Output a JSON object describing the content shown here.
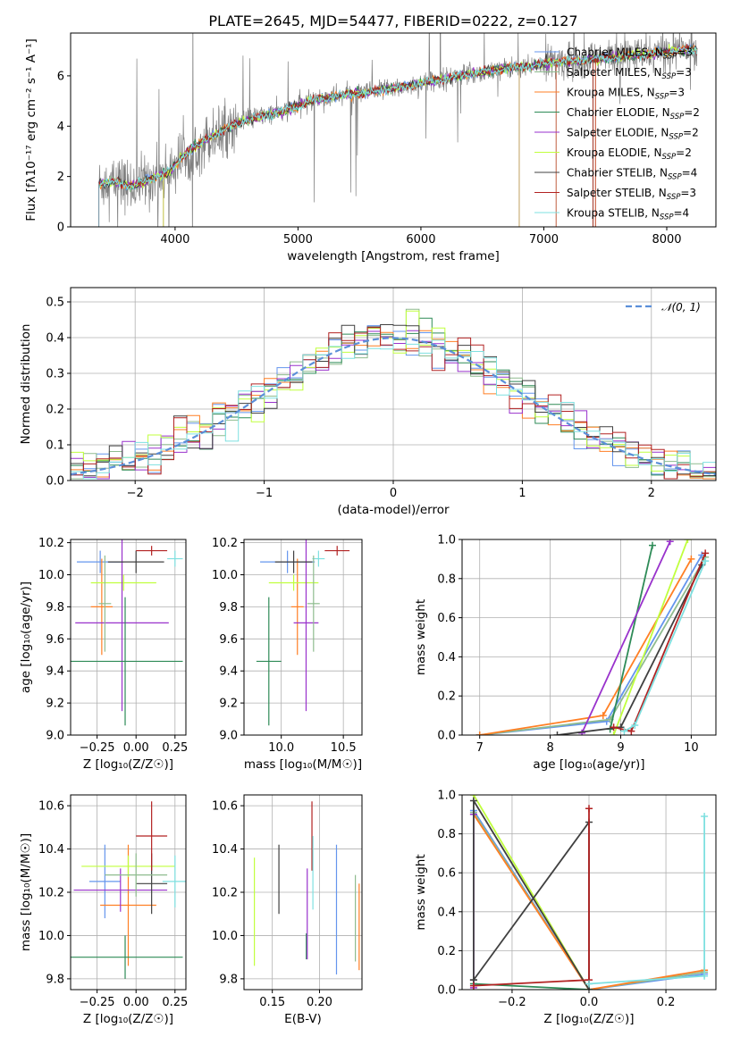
{
  "figure": {
    "title": "PLATE=2645, MJD=54477, FIBERID=0222, z=0.127"
  },
  "colors": {
    "Chabrier MILES": "#6495ed",
    "Salpeter MILES": "#8fbc8f",
    "Kroupa MILES": "#ff7f24",
    "Chabrier ELODIE": "#2e8b57",
    "Salpeter ELODIE": "#9932cc",
    "Kroupa ELODIE": "#c0ff3e",
    "Chabrier STELIB": "#404040",
    "Salpeter STELIB": "#b22222",
    "Kroupa STELIB": "#7ee0e0",
    "data": "#808080",
    "normal_curve": "#5b8fd9",
    "grid": "#b0b0b0"
  },
  "chart_data": [
    {
      "id": "spectrum",
      "type": "line",
      "xlabel": "wavelength [Angstrom, rest frame]",
      "ylabel": "Flux [fλ10⁻¹⁷ erg cm⁻² s⁻¹ A⁻¹]",
      "xlim": [
        3150,
        8400
      ],
      "ylim": [
        0,
        7.7
      ],
      "xticks": [
        4000,
        5000,
        6000,
        7000,
        8000
      ],
      "yticks": [
        0,
        2,
        4,
        6
      ],
      "grid": false,
      "legend_position": "right",
      "legend": [
        "Chabrier MILES, N_SSP=3",
        "Salpeter MILES, N_SSP=3",
        "Kroupa MILES, N_SSP=3",
        "Chabrier ELODIE, N_SSP=2",
        "Salpeter ELODIE, N_SSP=2",
        "Kroupa ELODIE, N_SSP=2",
        "Chabrier STELIB, N_SSP=4",
        "Salpeter STELIB, N_SSP=3",
        "Kroupa STELIB, N_SSP=4"
      ],
      "continuum": {
        "x": [
          3380,
          3500,
          3650,
          3800,
          3950,
          4100,
          4300,
          4500,
          4700,
          4900,
          5100,
          5300,
          5500,
          5700,
          5900,
          6100,
          6300,
          6500,
          6700,
          6900,
          7100,
          7300,
          7500,
          7700,
          7900,
          8100,
          8200
        ],
        "y": [
          1.7,
          1.8,
          1.6,
          1.9,
          2.2,
          3.0,
          3.6,
          4.1,
          4.4,
          4.6,
          5.0,
          5.2,
          5.3,
          5.45,
          5.6,
          5.8,
          6.0,
          6.15,
          6.3,
          6.4,
          6.55,
          6.6,
          6.7,
          6.8,
          6.9,
          7.0,
          7.05
        ]
      }
    },
    {
      "id": "residuals",
      "type": "line",
      "xlabel": "(data-model)/error",
      "ylabel": "Normed distribution",
      "xlim": [
        -2.5,
        2.5
      ],
      "ylim": [
        0,
        0.54
      ],
      "xticks": [
        -2,
        -1,
        0,
        1,
        2
      ],
      "yticks": [
        0.0,
        0.1,
        0.2,
        0.3,
        0.4,
        0.5
      ],
      "grid": true,
      "legend": [
        "𝒩(0, 1)"
      ],
      "legend_position": "top-right"
    },
    {
      "id": "age_vs_Z",
      "type": "scatter",
      "xlabel": "Z [log₁₀(Z/Z☉)]",
      "ylabel": "age  [log₁₀(age/yr)]",
      "xlim": [
        -0.42,
        0.32
      ],
      "ylim": [
        9.0,
        10.22
      ],
      "xticks": [
        -0.25,
        0.0,
        0.25
      ],
      "yticks": [
        9.0,
        9.2,
        9.4,
        9.6,
        9.8,
        10.0,
        10.2
      ],
      "points": [
        {
          "series": "Chabrier MILES",
          "x": -0.23,
          "xerr": 0.15,
          "y": 10.08,
          "yerr": 0.07
        },
        {
          "series": "Kroupa MILES",
          "x": -0.22,
          "xerr": 0.07,
          "y": 9.8,
          "yerr": 0.3
        },
        {
          "series": "Kroupa ELODIE",
          "x": -0.08,
          "xerr": 0.21,
          "y": 9.95,
          "yerr": 0.05
        },
        {
          "series": "Salpeter ELODIE",
          "x": -0.09,
          "xerr": 0.3,
          "y": 9.7,
          "yerr": 0.55
        },
        {
          "series": "Chabrier ELODIE",
          "x": -0.07,
          "xerr": 0.37,
          "y": 9.46,
          "yerr": 0.4
        },
        {
          "series": "Chabrier STELIB",
          "x": 0.0,
          "xerr": 0.18,
          "y": 10.08,
          "yerr": 0.07
        },
        {
          "series": "Salpeter STELIB",
          "x": 0.1,
          "xerr": 0.1,
          "y": 10.15,
          "yerr": 0.03
        },
        {
          "series": "Kroupa STELIB",
          "x": 0.25,
          "xerr": 0.05,
          "y": 10.1,
          "yerr": 0.05
        },
        {
          "series": "Salpeter MILES",
          "x": -0.2,
          "xerr": 0.04,
          "y": 9.82,
          "yerr": 0.3
        }
      ]
    },
    {
      "id": "age_vs_mass",
      "type": "scatter",
      "xlabel": "mass [log₁₀(M/M☉)]",
      "ylabel": "",
      "xlim": [
        9.7,
        10.65
      ],
      "ylim": [
        9.0,
        10.22
      ],
      "xticks": [
        10.0,
        10.5
      ],
      "yticks": [
        9.0,
        9.2,
        9.4,
        9.6,
        9.8,
        10.0,
        10.2
      ],
      "points": [
        {
          "series": "Chabrier MILES",
          "x": 10.05,
          "xerr": 0.22,
          "y": 10.08,
          "yerr": 0.07
        },
        {
          "series": "Kroupa MILES",
          "x": 10.13,
          "xerr": 0.05,
          "y": 9.8,
          "yerr": 0.3
        },
        {
          "series": "Kroupa ELODIE",
          "x": 10.1,
          "xerr": 0.2,
          "y": 9.95,
          "yerr": 0.05
        },
        {
          "series": "Salpeter ELODIE",
          "x": 10.2,
          "xerr": 0.1,
          "y": 9.7,
          "yerr": 0.55
        },
        {
          "series": "Chabrier ELODIE",
          "x": 9.9,
          "xerr": 0.1,
          "y": 9.46,
          "yerr": 0.4
        },
        {
          "series": "Chabrier STELIB",
          "x": 10.1,
          "xerr": 0.15,
          "y": 10.08,
          "yerr": 0.07
        },
        {
          "series": "Salpeter STELIB",
          "x": 10.45,
          "xerr": 0.1,
          "y": 10.15,
          "yerr": 0.03
        },
        {
          "series": "Kroupa STELIB",
          "x": 10.3,
          "xerr": 0.05,
          "y": 10.1,
          "yerr": 0.05
        },
        {
          "series": "Salpeter MILES",
          "x": 10.26,
          "xerr": 0.05,
          "y": 9.82,
          "yerr": 0.3
        }
      ]
    },
    {
      "id": "weight_vs_age",
      "type": "line",
      "xlabel": "age  [log₁₀(age/yr)]",
      "ylabel": "mass weight",
      "xlim": [
        6.75,
        10.35
      ],
      "ylim": [
        0,
        1.0
      ],
      "xticks": [
        7,
        8,
        9,
        10
      ],
      "yticks": [
        0.0,
        0.2,
        0.4,
        0.6,
        0.8,
        1.0
      ],
      "grid": true,
      "series": [
        {
          "color_key": "Chabrier MILES",
          "x": [
            7.0,
            8.8,
            10.15
          ],
          "y": [
            0.0,
            0.07,
            0.92
          ]
        },
        {
          "color_key": "Salpeter MILES",
          "x": [
            7.0,
            8.85,
            10.2
          ],
          "y": [
            0.0,
            0.08,
            0.91
          ]
        },
        {
          "color_key": "Kroupa MILES",
          "x": [
            7.0,
            8.75,
            10.0
          ],
          "y": [
            0.0,
            0.1,
            0.9
          ]
        },
        {
          "color_key": "Chabrier ELODIE",
          "x": [
            8.85,
            9.45
          ],
          "y": [
            0.03,
            0.97
          ]
        },
        {
          "color_key": "Salpeter ELODIE",
          "x": [
            8.45,
            9.7
          ],
          "y": [
            0.01,
            0.99
          ]
        },
        {
          "color_key": "Kroupa ELODIE",
          "x": [
            8.9,
            9.95
          ],
          "y": [
            0.0,
            1.0
          ]
        },
        {
          "color_key": "Chabrier STELIB",
          "x": [
            8.1,
            9.0,
            10.15
          ],
          "y": [
            0.0,
            0.04,
            0.87
          ]
        },
        {
          "color_key": "Salpeter STELIB",
          "x": [
            8.9,
            9.15,
            10.2
          ],
          "y": [
            0.04,
            0.02,
            0.93
          ]
        },
        {
          "color_key": "Kroupa STELIB",
          "x": [
            9.05,
            9.2,
            10.2
          ],
          "y": [
            0.02,
            0.05,
            0.89
          ]
        }
      ]
    },
    {
      "id": "mass_vs_Z",
      "type": "scatter",
      "xlabel": "Z [log₁₀(Z/Z☉)]",
      "ylabel": "mass [log₁₀(M/M☉)]",
      "xlim": [
        -0.42,
        0.32
      ],
      "ylim": [
        9.75,
        10.65
      ],
      "xticks": [
        -0.25,
        0.0,
        0.25
      ],
      "yticks": [
        9.8,
        10.0,
        10.2,
        10.4,
        10.6
      ],
      "points": [
        {
          "series": "Chabrier MILES",
          "x": -0.2,
          "xerr": 0.1,
          "y": 10.25,
          "yerr": 0.17
        },
        {
          "series": "Kroupa MILES",
          "x": -0.05,
          "xerr": 0.18,
          "y": 10.14,
          "yerr": 0.28
        },
        {
          "series": "Kroupa ELODIE",
          "x": -0.05,
          "xerr": 0.3,
          "y": 10.32,
          "yerr": 0.05
        },
        {
          "series": "Salpeter ELODIE",
          "x": -0.1,
          "xerr": 0.3,
          "y": 10.21,
          "yerr": 0.1
        },
        {
          "series": "Chabrier ELODIE",
          "x": -0.07,
          "xerr": 0.37,
          "y": 9.9,
          "yerr": 0.1
        },
        {
          "series": "Chabrier STELIB",
          "x": 0.1,
          "xerr": 0.1,
          "y": 10.24,
          "yerr": 0.14
        },
        {
          "series": "Salpeter STELIB",
          "x": 0.1,
          "xerr": 0.1,
          "y": 10.46,
          "yerr": 0.16
        },
        {
          "series": "Kroupa STELIB",
          "x": 0.25,
          "xerr": 0.08,
          "y": 10.25,
          "yerr": 0.12
        },
        {
          "series": "Salpeter MILES",
          "x": 0.0,
          "xerr": 0.2,
          "y": 10.28,
          "yerr": 0.1
        }
      ]
    },
    {
      "id": "mass_vs_EBV",
      "type": "scatter",
      "xlabel": "E(B-V)",
      "ylabel": "",
      "xlim": [
        0.12,
        0.245
      ],
      "ylim": [
        9.75,
        10.65
      ],
      "xticks": [
        0.15,
        0.2
      ],
      "yticks": [
        9.8,
        10.0,
        10.2,
        10.4,
        10.6
      ],
      "points": [
        {
          "series": "Kroupa ELODIE",
          "x": 0.131,
          "y": 10.11,
          "yerr": 0.25
        },
        {
          "series": "Chabrier STELIB",
          "x": 0.157,
          "y": 10.26,
          "yerr": 0.16
        },
        {
          "series": "Chabrier ELODIE",
          "x": 0.186,
          "y": 9.95,
          "yerr": 0.06
        },
        {
          "series": "Salpeter ELODIE",
          "x": 0.187,
          "y": 10.1,
          "yerr": 0.21
        },
        {
          "series": "Salpeter STELIB",
          "x": 0.192,
          "y": 10.46,
          "yerr": 0.16
        },
        {
          "series": "Kroupa STELIB",
          "x": 0.193,
          "y": 10.29,
          "yerr": 0.17
        },
        {
          "series": "Chabrier MILES",
          "x": 0.218,
          "y": 10.12,
          "yerr": 0.3
        },
        {
          "series": "Salpeter MILES",
          "x": 0.238,
          "y": 10.08,
          "yerr": 0.2
        },
        {
          "series": "Kroupa MILES",
          "x": 0.242,
          "y": 10.04,
          "yerr": 0.2
        }
      ]
    },
    {
      "id": "weight_vs_Z",
      "type": "line",
      "xlabel": "Z [log₁₀(Z/Z☉)]",
      "ylabel": "mass weight",
      "xlim": [
        -0.33,
        0.33
      ],
      "ylim": [
        0,
        1.0
      ],
      "xticks": [
        -0.2,
        0.0,
        0.2
      ],
      "yticks": [
        0.0,
        0.2,
        0.4,
        0.6,
        0.8,
        1.0
      ],
      "grid": true,
      "series": [
        {
          "color_key": "Chabrier MILES",
          "x": [
            -0.3,
            0.0,
            0.3
          ],
          "y": [
            0.92,
            0.0,
            0.08
          ]
        },
        {
          "color_key": "Salpeter MILES",
          "x": [
            -0.3,
            0.0,
            0.3
          ],
          "y": [
            0.91,
            0.0,
            0.09
          ]
        },
        {
          "color_key": "Kroupa MILES",
          "x": [
            -0.3,
            0.0,
            0.3
          ],
          "y": [
            0.9,
            0.0,
            0.1
          ]
        },
        {
          "color_key": "Chabrier ELODIE",
          "x": [
            -0.3,
            0.0
          ],
          "y": [
            0.03,
            0.0
          ]
        },
        {
          "color_key": "Salpeter ELODIE",
          "x": [
            -0.3,
            -0.3
          ],
          "y": [
            0.01,
            0.9
          ]
        },
        {
          "color_key": "Kroupa ELODIE",
          "x": [
            -0.3,
            0.0
          ],
          "y": [
            1.0,
            0.0
          ]
        },
        {
          "color_key": "Chabrier STELIB",
          "x": [
            -0.3,
            0.0,
            0.0,
            -0.3,
            -0.3
          ],
          "y": [
            0.05,
            0.86,
            0.0,
            0.97,
            0.05
          ]
        },
        {
          "color_key": "Salpeter STELIB",
          "x": [
            -0.3,
            0.0,
            0.0
          ],
          "y": [
            0.02,
            0.05,
            0.93
          ]
        },
        {
          "color_key": "Kroupa STELIB",
          "x": [
            0.0,
            0.3,
            0.3
          ],
          "y": [
            0.03,
            0.07,
            0.89
          ]
        }
      ]
    }
  ]
}
